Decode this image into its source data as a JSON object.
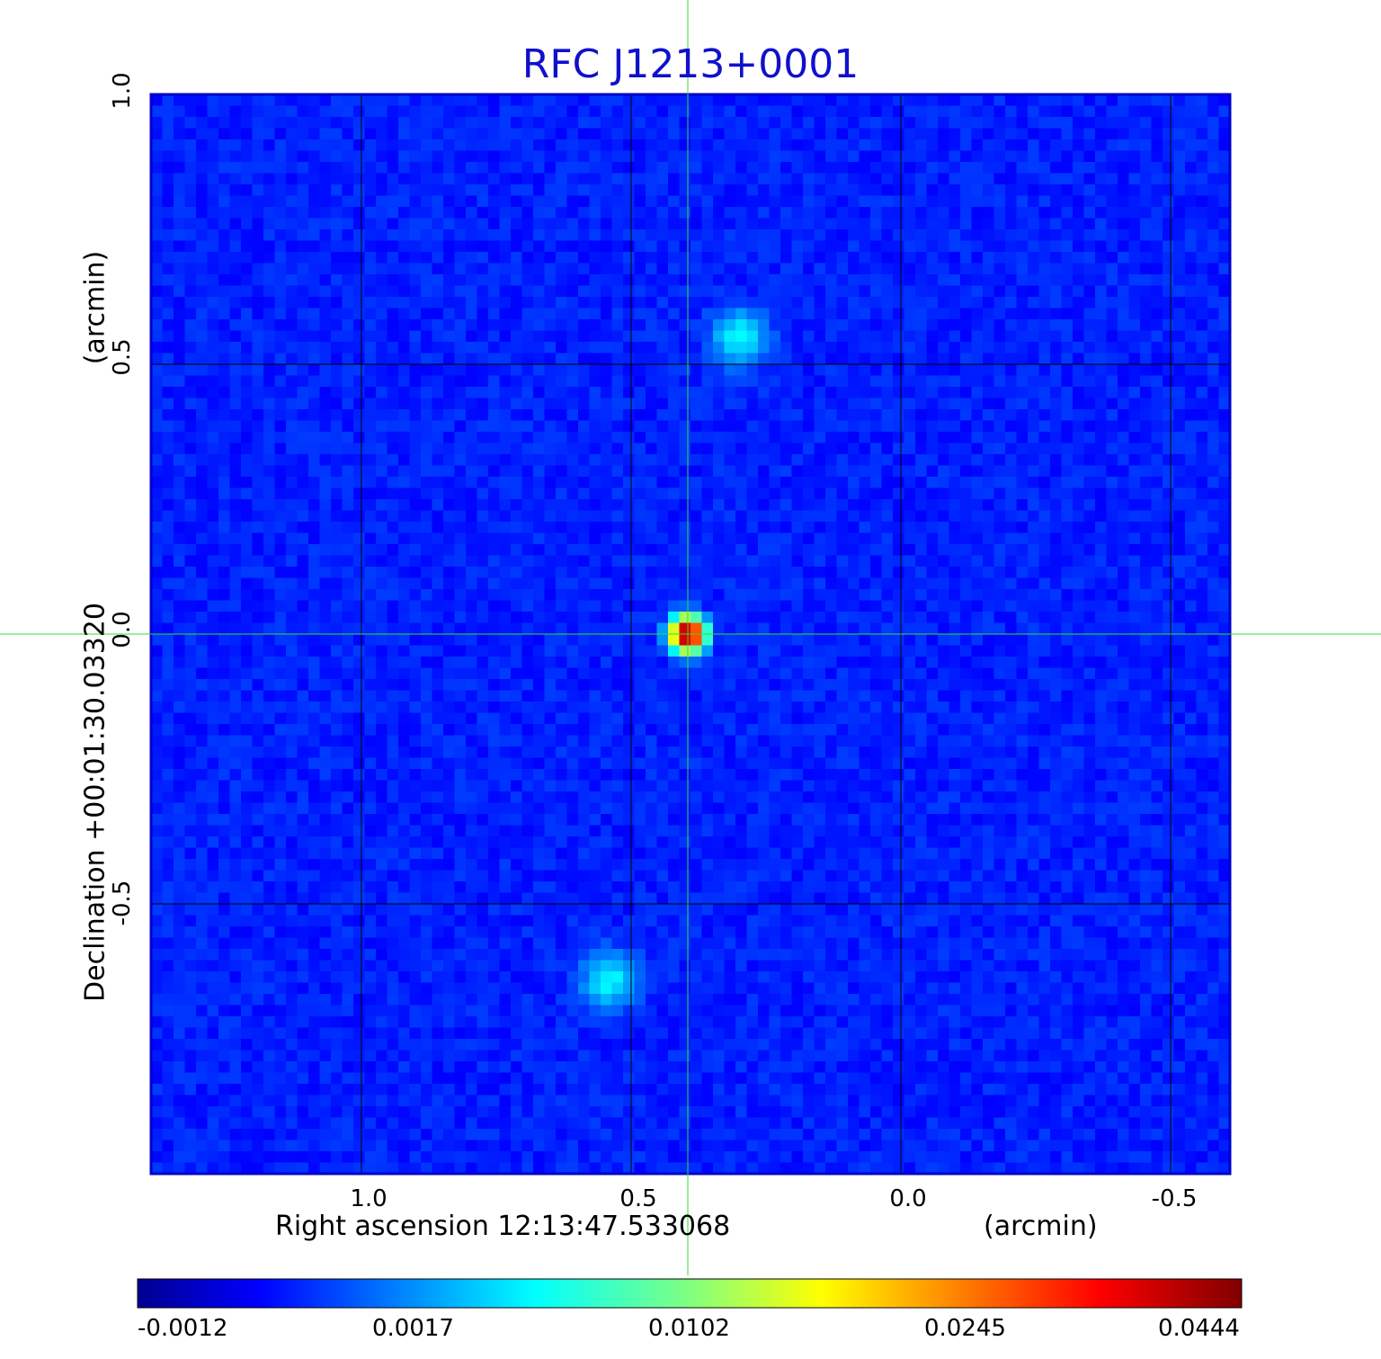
{
  "chart_data": {
    "type": "heatmap",
    "title": "RFC J1213+0001",
    "xlabel": "Right ascension  12:13:47.533068",
    "xunit": "(arcmin)",
    "ylabel": "Declination  +00:01:30.03320",
    "yunit": "(arcmin)",
    "x_ticks": [
      "1.0",
      "0.5",
      "0.0",
      "-0.5"
    ],
    "y_ticks": [
      "1.0",
      "0.5",
      "0.0",
      "-0.5"
    ],
    "xlim": [
      1.39,
      -0.61
    ],
    "ylim": [
      -1.0,
      1.0
    ],
    "grid": true,
    "crosshair": {
      "x": 0.395,
      "y": 0.0
    },
    "colormap": "jet",
    "colorbar_ticks": [
      "-0.0012",
      "0.0017",
      "0.0102",
      "0.0245",
      "0.0444"
    ],
    "color_range": [
      -0.0012,
      0.0444
    ],
    "sources": [
      {
        "x": 0.395,
        "y": 0.0,
        "peak": 0.0444
      },
      {
        "x": 0.3,
        "y": 0.55,
        "peak": 0.006
      },
      {
        "x": 0.54,
        "y": -0.64,
        "peak": 0.006
      }
    ]
  },
  "colors": {
    "title": "#1010cc",
    "crosshair": "#33dd33",
    "grid": "#000000",
    "frame": "#0000cc"
  }
}
